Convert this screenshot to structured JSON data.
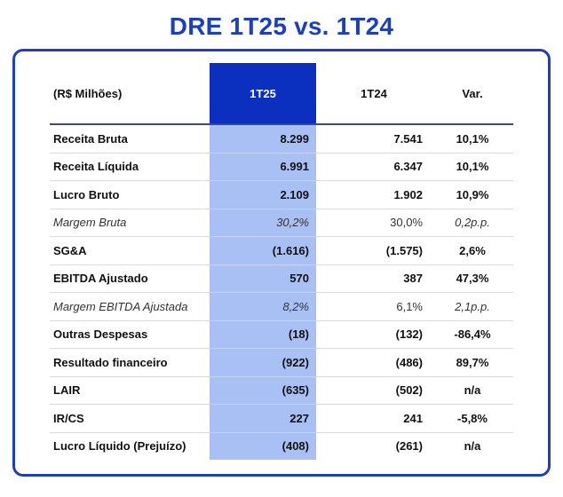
{
  "title": "DRE 1T25 vs. 1T24",
  "colors": {
    "accent": "#1a3fc4",
    "header_fill": "#0b2fbe",
    "column_fill": "#a9c0f5"
  },
  "table": {
    "headers": [
      "(R$ Milhões)",
      "1T25",
      "1T24",
      "Var."
    ],
    "rows": [
      {
        "label": "Receita Bruta",
        "c1T25": "8.299",
        "c1T24": "7.541",
        "var": "10,1%",
        "italic": false
      },
      {
        "label": "Receita Líquida",
        "c1T25": "6.991",
        "c1T24": "6.347",
        "var": "10,1%",
        "italic": false
      },
      {
        "label": "Lucro Bruto",
        "c1T25": "2.109",
        "c1T24": "1.902",
        "var": "10,9%",
        "italic": false
      },
      {
        "label": "Margem Bruta",
        "c1T25": "30,2%",
        "c1T24": "30,0%",
        "var": "0,2p.p.",
        "italic": true
      },
      {
        "label": "SG&A",
        "c1T25": "(1.616)",
        "c1T24": "(1.575)",
        "var": "2,6%",
        "italic": false
      },
      {
        "label": "EBITDA Ajustado",
        "c1T25": "570",
        "c1T24": "387",
        "var": "47,3%",
        "italic": false
      },
      {
        "label": "Margem EBITDA Ajustada",
        "c1T25": "8,2%",
        "c1T24": "6,1%",
        "var": "2,1p.p.",
        "italic": true
      },
      {
        "label": "Outras Despesas",
        "c1T25": "(18)",
        "c1T24": "(132)",
        "var": "-86,4%",
        "italic": false
      },
      {
        "label": "Resultado financeiro",
        "c1T25": "(922)",
        "c1T24": "(486)",
        "var": "89,7%",
        "italic": false
      },
      {
        "label": "LAIR",
        "c1T25": "(635)",
        "c1T24": "(502)",
        "var": "n/a",
        "italic": false
      },
      {
        "label": "IR/CS",
        "c1T25": "227",
        "c1T24": "241",
        "var": "-5,8%",
        "italic": false
      },
      {
        "label": "Lucro Líquido (Prejuízo)",
        "c1T25": "(408)",
        "c1T24": "(261)",
        "var": "n/a",
        "italic": false
      }
    ]
  }
}
